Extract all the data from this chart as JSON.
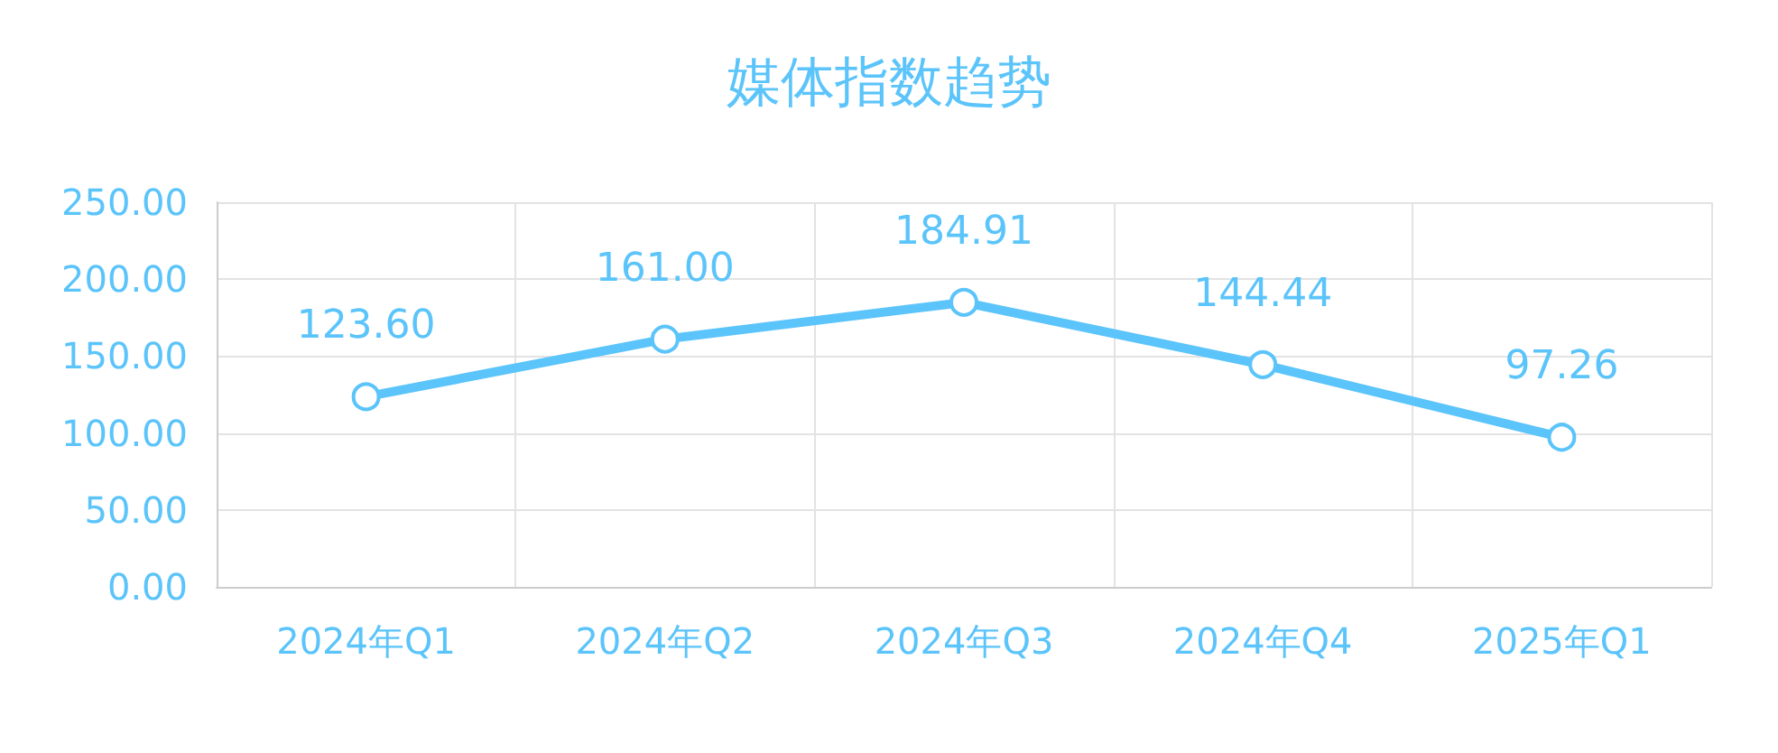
{
  "chart_data": {
    "type": "line",
    "title": "媒体指数趋势",
    "categories": [
      "2024年Q1",
      "2024年Q2",
      "2024年Q3",
      "2024年Q4",
      "2025年Q1"
    ],
    "series": [
      {
        "color": "#5bc4fa",
        "values": [
          123.6,
          161.0,
          184.91,
          144.44,
          97.26
        ],
        "value_labels": [
          "123.60",
          "161.00",
          "184.91",
          "144.44",
          "97.26"
        ]
      }
    ],
    "ylim": [
      0,
      250
    ],
    "yticks": [
      {
        "value": 0,
        "label": "0.00"
      },
      {
        "value": 50,
        "label": "50.00"
      },
      {
        "value": 100,
        "label": "100.00"
      },
      {
        "value": 150,
        "label": "150.00"
      },
      {
        "value": 200,
        "label": "200.00"
      },
      {
        "value": 250,
        "label": "250.00"
      }
    ],
    "grid": true,
    "marker": "circle",
    "line_style": "solid"
  }
}
